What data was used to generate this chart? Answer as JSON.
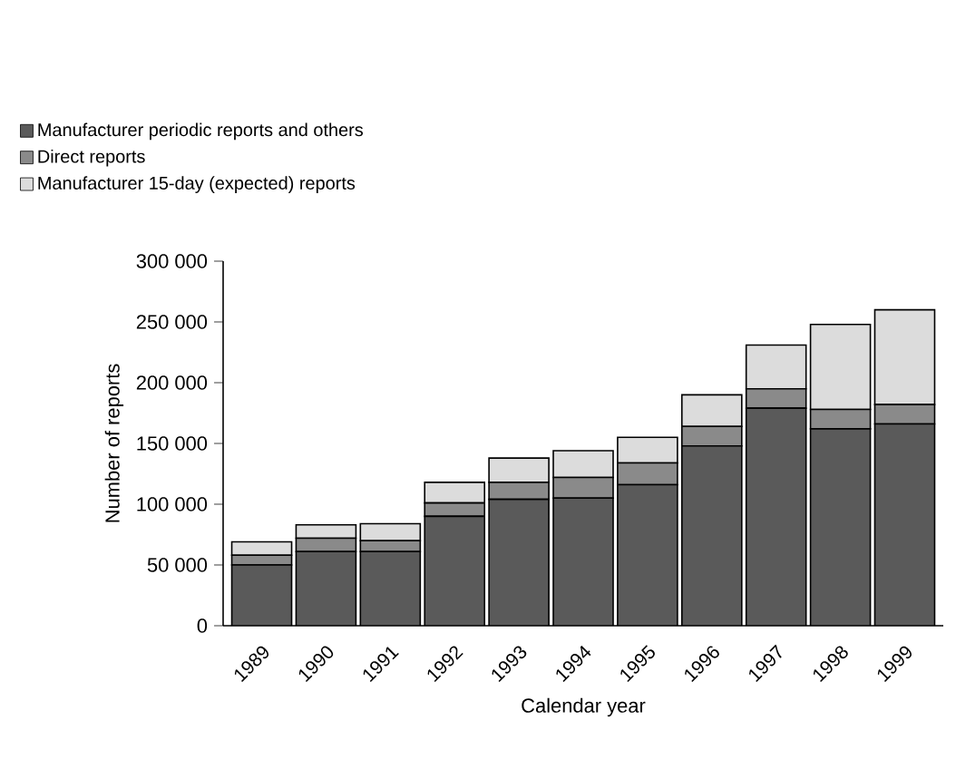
{
  "chart_data": {
    "type": "bar",
    "stacked": true,
    "xlabel": "Calendar year",
    "ylabel": "Number of reports",
    "categories": [
      "1989",
      "1990",
      "1991",
      "1992",
      "1993",
      "1994",
      "1995",
      "1996",
      "1997",
      "1998",
      "1999"
    ],
    "series": [
      {
        "name": "Manufacturer periodic reports and others",
        "color": "#5a5a5a",
        "values": [
          50000,
          61000,
          61000,
          90000,
          104000,
          105000,
          116000,
          148000,
          179000,
          162000,
          166000
        ]
      },
      {
        "name": "Direct reports",
        "color": "#8a8a8a",
        "values": [
          8000,
          11000,
          9000,
          11000,
          14000,
          17000,
          18000,
          16000,
          16000,
          16000,
          16000
        ]
      },
      {
        "name": "Manufacturer 15-day (expected) reports",
        "color": "#dcdcdc",
        "values": [
          11000,
          11000,
          14000,
          17000,
          20000,
          22000,
          21000,
          26000,
          36000,
          70000,
          78000
        ]
      }
    ],
    "ylim": [
      0,
      300000
    ],
    "yticks": [
      0,
      {
        "value": 50000,
        "label": "50 000"
      },
      {
        "value": 100000,
        "label": "100 000"
      },
      {
        "value": 150000,
        "label": "150 000"
      },
      {
        "value": 200000,
        "label": "200 000"
      },
      {
        "value": 250000,
        "label": "250 000"
      },
      {
        "value": 300000,
        "label": "300 000"
      }
    ],
    "legend": "top",
    "grid": false
  }
}
